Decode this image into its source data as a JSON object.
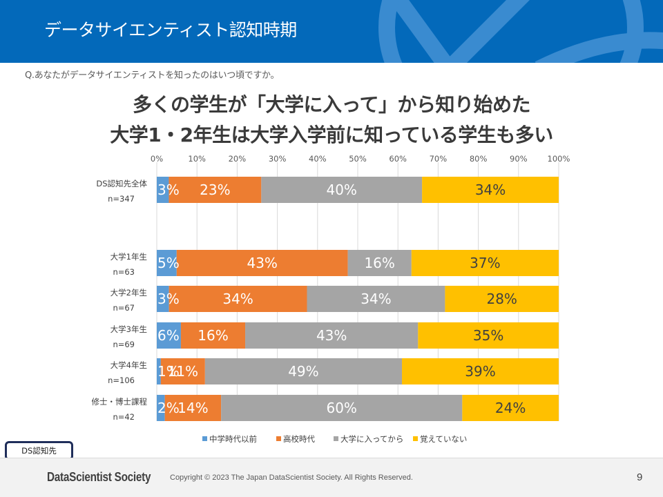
{
  "header": {
    "title": "データサイエンティスト認知時期"
  },
  "question": "Q.あなたがデータサイエンティストを知ったのはいつ頃ですか。",
  "headline": {
    "line1": "多くの学生が「大学に入って」から知り始めた",
    "line2": "大学1・2年生は大学入学前に知っている学生も多い"
  },
  "badge": {
    "label": "DS認知先"
  },
  "footer": {
    "brand": "DataScientist Society",
    "copyright": "Copyright © 2023  The Japan DataScientist Society. All Rights Reserved.",
    "page_number": "9"
  },
  "colors": {
    "header_bg": "#0369ba",
    "header_deco": "#3a8bd0",
    "series": [
      "#5b9bd5",
      "#ed7d31",
      "#a5a5a5",
      "#ffc000"
    ],
    "label_light": "#ffffff",
    "label_dark": "#404040"
  },
  "chart_data": {
    "type": "bar",
    "orientation": "horizontal",
    "stacked": true,
    "percent_stacked": true,
    "title": "",
    "xlabel": "",
    "ylabel": "",
    "xlim": [
      0,
      100
    ],
    "x_ticks": [
      "0%",
      "10%",
      "20%",
      "30%",
      "40%",
      "50%",
      "60%",
      "70%",
      "80%",
      "90%",
      "100%"
    ],
    "grid": true,
    "legend_position": "bottom",
    "categories": [
      {
        "name": "DS認知先全体",
        "n": "n=347"
      },
      {
        "name": "大学1年生",
        "n": "n=63"
      },
      {
        "name": "大学2年生",
        "n": "n=67"
      },
      {
        "name": "大学3年生",
        "n": "n=69"
      },
      {
        "name": "大学4年生",
        "n": "n=106"
      },
      {
        "name": "修士・博士課程",
        "n": "n=42"
      }
    ],
    "series": [
      {
        "name": "中学時代以前",
        "values": [
          3,
          5,
          3,
          6,
          1,
          2
        ],
        "labels": [
          "3%",
          "5%",
          "3%",
          "6%",
          "1%",
          "2%"
        ]
      },
      {
        "name": "高校時代",
        "values": [
          23,
          43,
          34,
          16,
          11,
          14
        ],
        "labels": [
          "23%",
          "43%",
          "34%",
          "16%",
          "11%",
          "14%"
        ]
      },
      {
        "name": "大学に入ってから",
        "values": [
          40,
          16,
          34,
          43,
          49,
          60
        ],
        "labels": [
          "40%",
          "16%",
          "34%",
          "43%",
          "49%",
          "60%"
        ]
      },
      {
        "name": "覚えていない",
        "values": [
          34,
          37,
          28,
          35,
          39,
          24
        ],
        "labels": [
          "34%",
          "37%",
          "28%",
          "35%",
          "39%",
          "24%"
        ]
      }
    ]
  }
}
